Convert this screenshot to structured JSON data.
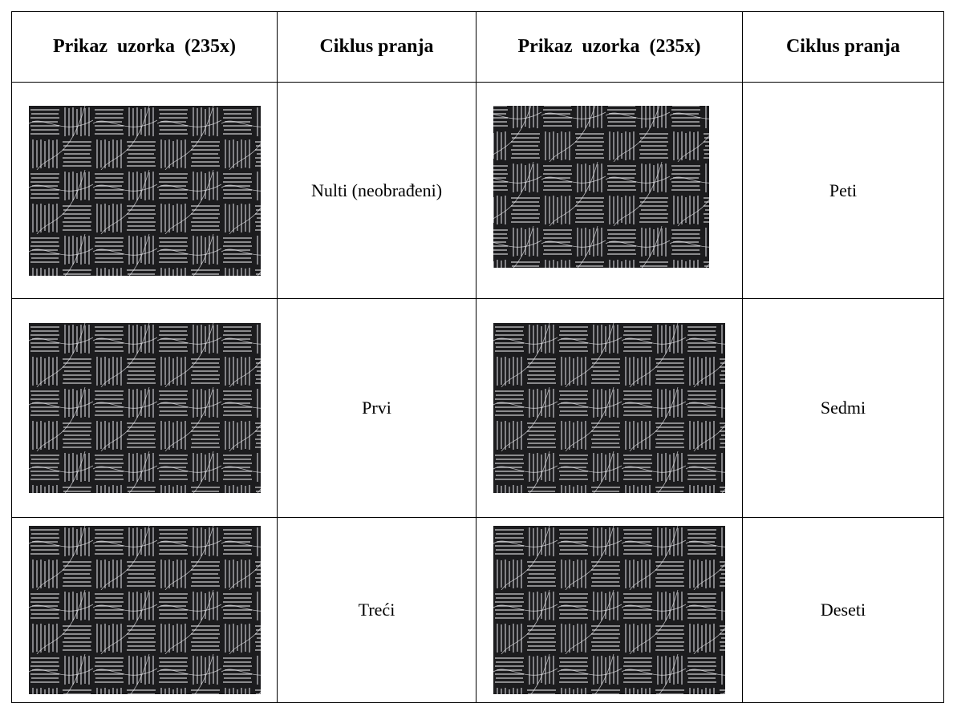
{
  "table": {
    "header": [
      "Prikaz  uzorka  (235x)",
      "Ciklus pranja",
      "Prikaz  uzorka  (235x)",
      "Ciklus pranja"
    ],
    "rows": [
      [
        "Nulti (neobrađeni)",
        "Peti"
      ],
      [
        "Prvi",
        "Sedmi"
      ],
      [
        "Treći",
        "Deseti"
      ]
    ]
  }
}
